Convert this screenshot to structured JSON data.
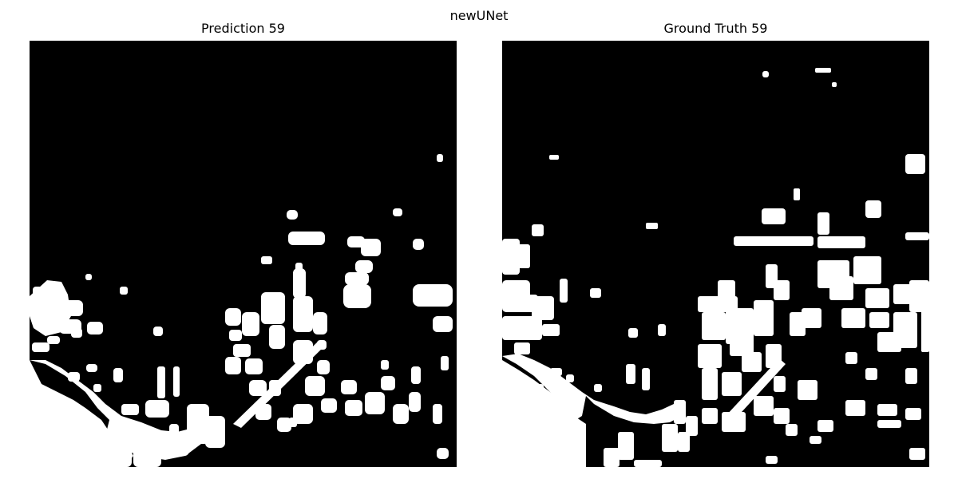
{
  "figure": {
    "suptitle": "newUNet"
  },
  "panels": [
    {
      "title": "Prediction 59"
    },
    {
      "title": "Ground Truth 59"
    }
  ],
  "colors": {
    "background": "#000000",
    "foreground": "#ffffff"
  }
}
